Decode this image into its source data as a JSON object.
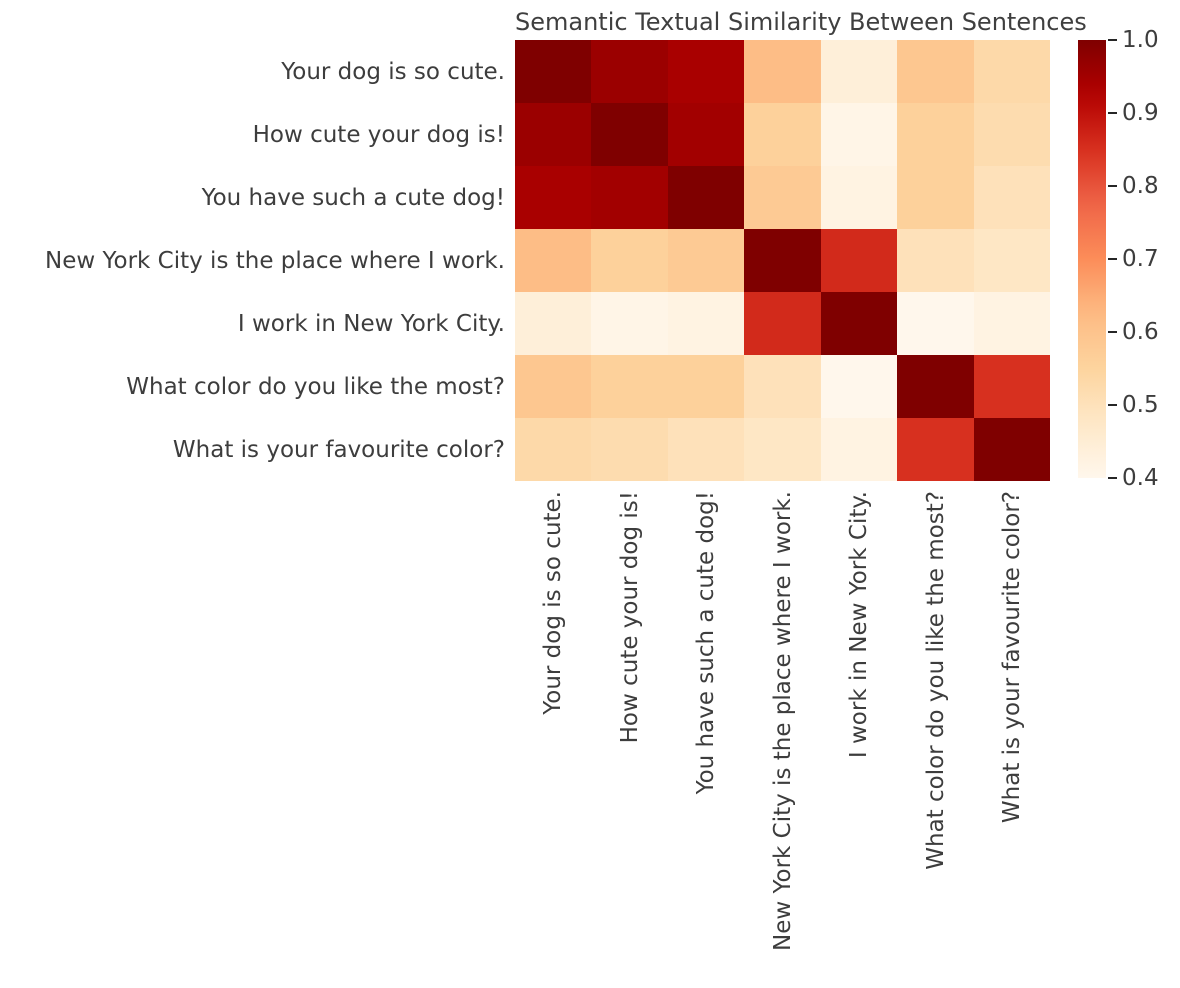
{
  "chart_data": {
    "type": "heatmap",
    "title": "Semantic Textual Similarity Between Sentences",
    "labels": [
      "Your dog is so cute.",
      "How cute your dog is!",
      "You have such a cute dog!",
      "New York City is the place where I work.",
      "I work in New York City.",
      "What color do you like the most?",
      "What is your favourite color?"
    ],
    "matrix": [
      [
        1.0,
        0.96,
        0.94,
        0.62,
        0.44,
        0.59,
        0.53
      ],
      [
        0.96,
        1.0,
        0.95,
        0.56,
        0.41,
        0.56,
        0.52
      ],
      [
        0.94,
        0.95,
        1.0,
        0.58,
        0.42,
        0.56,
        0.5
      ],
      [
        0.62,
        0.56,
        0.58,
        1.0,
        0.86,
        0.5,
        0.48
      ],
      [
        0.44,
        0.41,
        0.42,
        0.86,
        1.0,
        0.4,
        0.42
      ],
      [
        0.59,
        0.56,
        0.56,
        0.5,
        0.4,
        1.0,
        0.85
      ],
      [
        0.53,
        0.52,
        0.5,
        0.48,
        0.42,
        0.85,
        1.0
      ]
    ],
    "vmin": 0.4,
    "vmax": 1.0,
    "colormap": "OrRd",
    "colormap_anchors": [
      "#fff7ec",
      "#fee8c8",
      "#fdd49e",
      "#fdbb84",
      "#fc8d59",
      "#ef6548",
      "#d7301f",
      "#b30000",
      "#7f0000"
    ],
    "colorbar_ticks": [
      "1.0",
      "0.9",
      "0.8",
      "0.7",
      "0.6",
      "0.5",
      "0.4"
    ],
    "colorbar_position": "right",
    "grid": false
  },
  "colors": {
    "background": "#ffffff",
    "title_text": "#3f3f3f",
    "label_text": "#3d3d3d",
    "tick_mark": "#262626"
  }
}
